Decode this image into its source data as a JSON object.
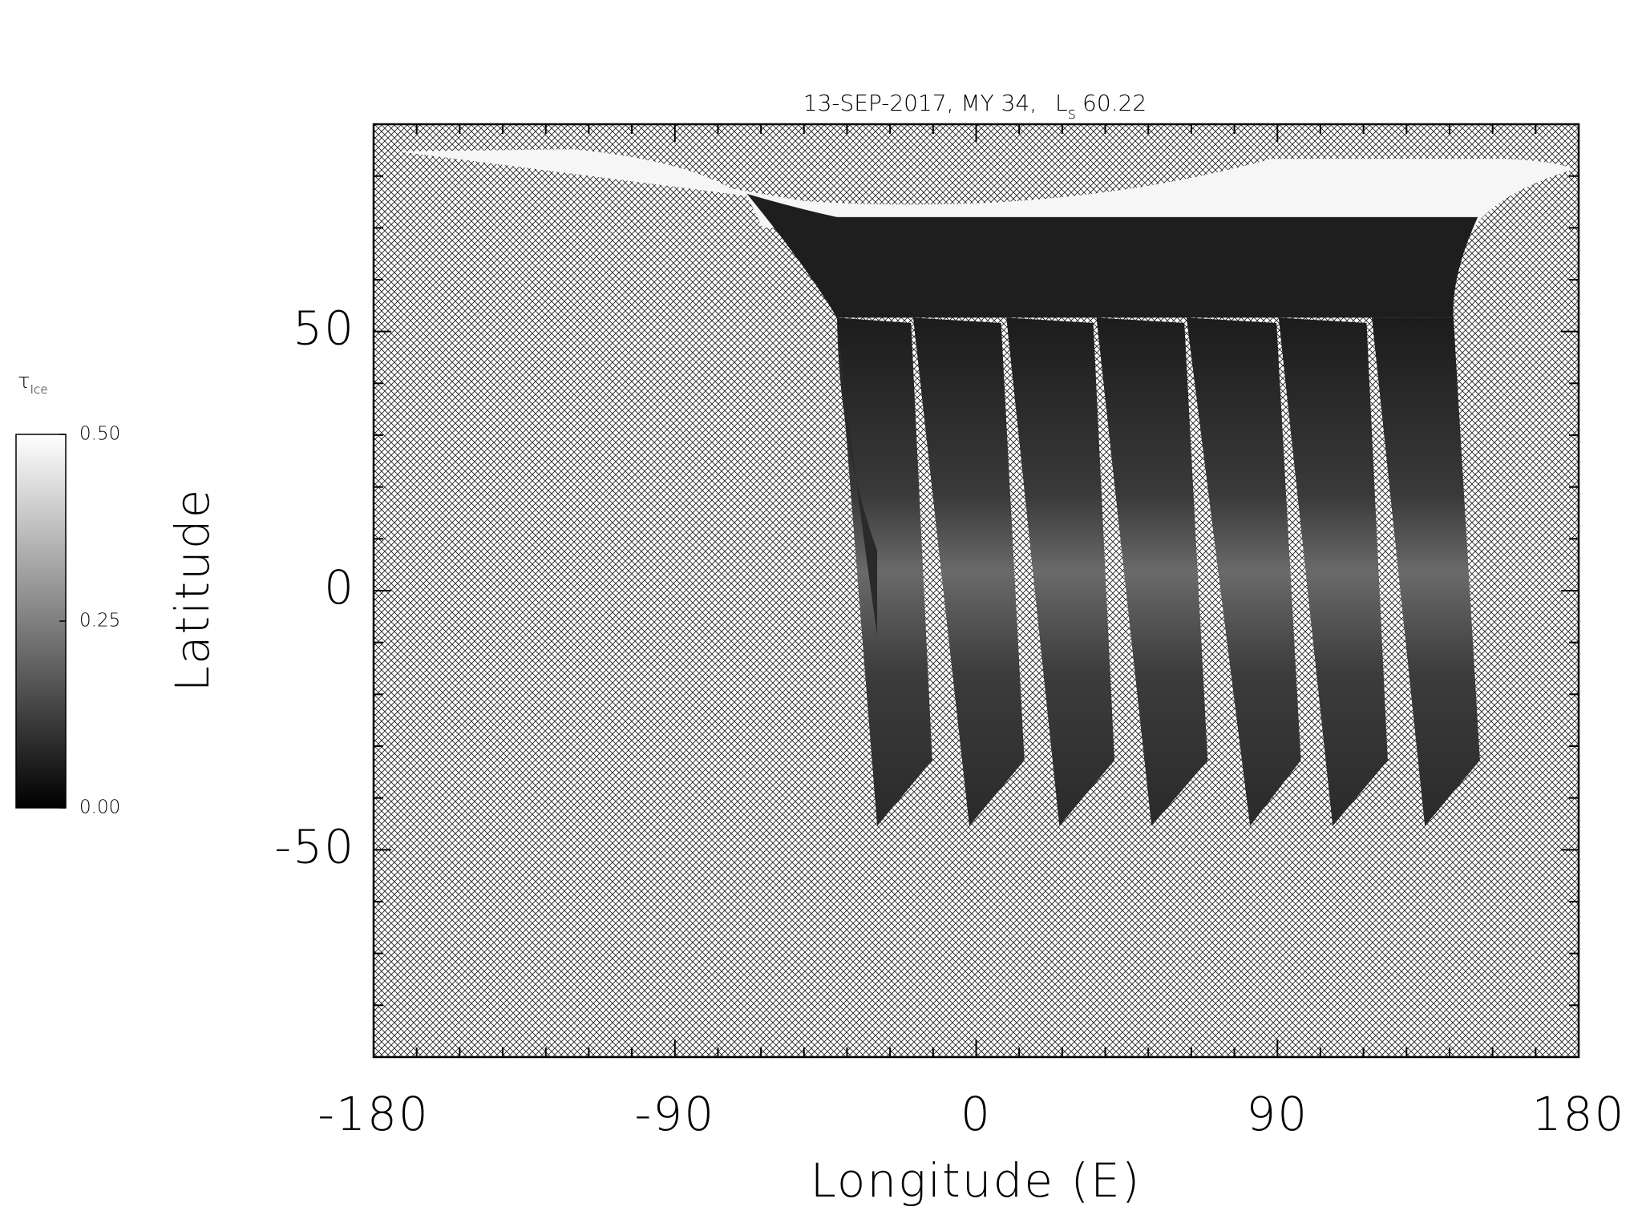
{
  "chart_data": {
    "type": "map",
    "title": {
      "text": "13-SEP-2017, MY 34,",
      "symbol": "L",
      "subscript": "s",
      "value": 60.22
    },
    "xlabel": "Longitude (E)",
    "ylabel": "Latitude",
    "xlim": [
      -180,
      180
    ],
    "xticks": [
      -180,
      -90,
      0,
      90,
      180
    ],
    "xminor": 7,
    "ylim": [
      -90,
      90
    ],
    "yticks": [
      -50,
      0,
      50
    ],
    "yminor": 5,
    "colorbar": {
      "label": {
        "symbol": "τ",
        "subscript": "Ice"
      },
      "lim": [
        0,
        0.5
      ],
      "ticks": [
        {
          "value": 0,
          "label": "0.00"
        },
        {
          "value": 0.25,
          "label": "0.25"
        },
        {
          "value": 0.5,
          "label": "0.50"
        }
      ],
      "colors": [
        "#000000",
        "#ffffff"
      ]
    }
  }
}
